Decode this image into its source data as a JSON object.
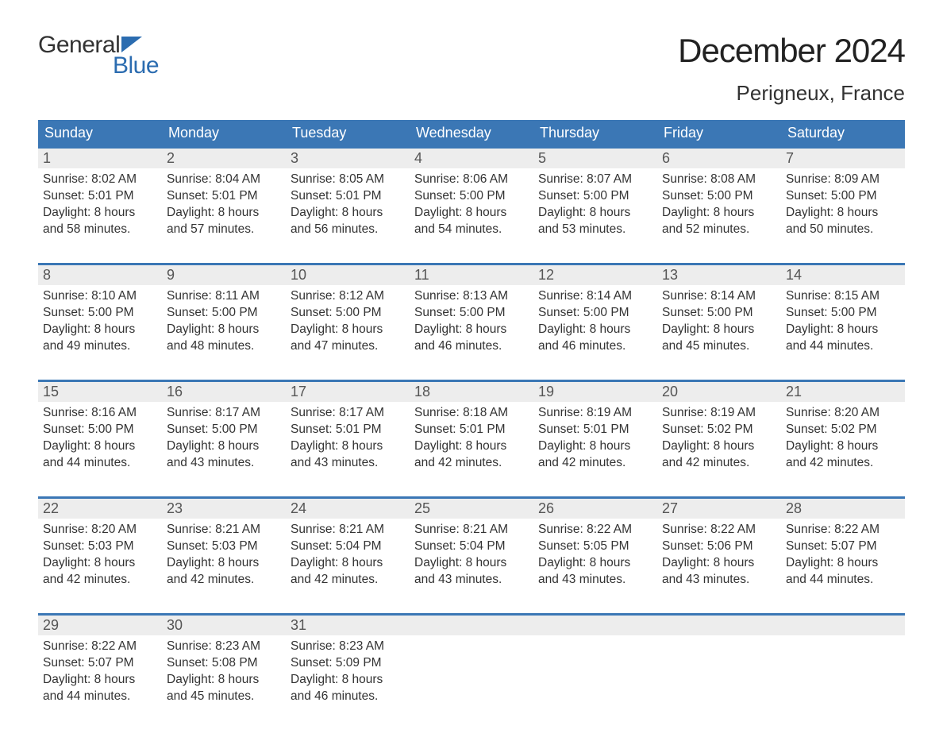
{
  "logo": {
    "word1": "General",
    "word2": "Blue",
    "triangle_color": "#2b6cb0"
  },
  "header": {
    "month_title": "December 2024",
    "location": "Perigneux, France"
  },
  "colors": {
    "header_bg": "#3b77b5",
    "header_text": "#ffffff",
    "daynum_bg": "#ededed",
    "text": "#333333",
    "week_border": "#3b77b5"
  },
  "weekdays": [
    "Sunday",
    "Monday",
    "Tuesday",
    "Wednesday",
    "Thursday",
    "Friday",
    "Saturday"
  ],
  "weeks": [
    [
      {
        "n": "1",
        "sunrise": "Sunrise: 8:02 AM",
        "sunset": "Sunset: 5:01 PM",
        "day1": "Daylight: 8 hours",
        "day2": "and 58 minutes."
      },
      {
        "n": "2",
        "sunrise": "Sunrise: 8:04 AM",
        "sunset": "Sunset: 5:01 PM",
        "day1": "Daylight: 8 hours",
        "day2": "and 57 minutes."
      },
      {
        "n": "3",
        "sunrise": "Sunrise: 8:05 AM",
        "sunset": "Sunset: 5:01 PM",
        "day1": "Daylight: 8 hours",
        "day2": "and 56 minutes."
      },
      {
        "n": "4",
        "sunrise": "Sunrise: 8:06 AM",
        "sunset": "Sunset: 5:00 PM",
        "day1": "Daylight: 8 hours",
        "day2": "and 54 minutes."
      },
      {
        "n": "5",
        "sunrise": "Sunrise: 8:07 AM",
        "sunset": "Sunset: 5:00 PM",
        "day1": "Daylight: 8 hours",
        "day2": "and 53 minutes."
      },
      {
        "n": "6",
        "sunrise": "Sunrise: 8:08 AM",
        "sunset": "Sunset: 5:00 PM",
        "day1": "Daylight: 8 hours",
        "day2": "and 52 minutes."
      },
      {
        "n": "7",
        "sunrise": "Sunrise: 8:09 AM",
        "sunset": "Sunset: 5:00 PM",
        "day1": "Daylight: 8 hours",
        "day2": "and 50 minutes."
      }
    ],
    [
      {
        "n": "8",
        "sunrise": "Sunrise: 8:10 AM",
        "sunset": "Sunset: 5:00 PM",
        "day1": "Daylight: 8 hours",
        "day2": "and 49 minutes."
      },
      {
        "n": "9",
        "sunrise": "Sunrise: 8:11 AM",
        "sunset": "Sunset: 5:00 PM",
        "day1": "Daylight: 8 hours",
        "day2": "and 48 minutes."
      },
      {
        "n": "10",
        "sunrise": "Sunrise: 8:12 AM",
        "sunset": "Sunset: 5:00 PM",
        "day1": "Daylight: 8 hours",
        "day2": "and 47 minutes."
      },
      {
        "n": "11",
        "sunrise": "Sunrise: 8:13 AM",
        "sunset": "Sunset: 5:00 PM",
        "day1": "Daylight: 8 hours",
        "day2": "and 46 minutes."
      },
      {
        "n": "12",
        "sunrise": "Sunrise: 8:14 AM",
        "sunset": "Sunset: 5:00 PM",
        "day1": "Daylight: 8 hours",
        "day2": "and 46 minutes."
      },
      {
        "n": "13",
        "sunrise": "Sunrise: 8:14 AM",
        "sunset": "Sunset: 5:00 PM",
        "day1": "Daylight: 8 hours",
        "day2": "and 45 minutes."
      },
      {
        "n": "14",
        "sunrise": "Sunrise: 8:15 AM",
        "sunset": "Sunset: 5:00 PM",
        "day1": "Daylight: 8 hours",
        "day2": "and 44 minutes."
      }
    ],
    [
      {
        "n": "15",
        "sunrise": "Sunrise: 8:16 AM",
        "sunset": "Sunset: 5:00 PM",
        "day1": "Daylight: 8 hours",
        "day2": "and 44 minutes."
      },
      {
        "n": "16",
        "sunrise": "Sunrise: 8:17 AM",
        "sunset": "Sunset: 5:00 PM",
        "day1": "Daylight: 8 hours",
        "day2": "and 43 minutes."
      },
      {
        "n": "17",
        "sunrise": "Sunrise: 8:17 AM",
        "sunset": "Sunset: 5:01 PM",
        "day1": "Daylight: 8 hours",
        "day2": "and 43 minutes."
      },
      {
        "n": "18",
        "sunrise": "Sunrise: 8:18 AM",
        "sunset": "Sunset: 5:01 PM",
        "day1": "Daylight: 8 hours",
        "day2": "and 42 minutes."
      },
      {
        "n": "19",
        "sunrise": "Sunrise: 8:19 AM",
        "sunset": "Sunset: 5:01 PM",
        "day1": "Daylight: 8 hours",
        "day2": "and 42 minutes."
      },
      {
        "n": "20",
        "sunrise": "Sunrise: 8:19 AM",
        "sunset": "Sunset: 5:02 PM",
        "day1": "Daylight: 8 hours",
        "day2": "and 42 minutes."
      },
      {
        "n": "21",
        "sunrise": "Sunrise: 8:20 AM",
        "sunset": "Sunset: 5:02 PM",
        "day1": "Daylight: 8 hours",
        "day2": "and 42 minutes."
      }
    ],
    [
      {
        "n": "22",
        "sunrise": "Sunrise: 8:20 AM",
        "sunset": "Sunset: 5:03 PM",
        "day1": "Daylight: 8 hours",
        "day2": "and 42 minutes."
      },
      {
        "n": "23",
        "sunrise": "Sunrise: 8:21 AM",
        "sunset": "Sunset: 5:03 PM",
        "day1": "Daylight: 8 hours",
        "day2": "and 42 minutes."
      },
      {
        "n": "24",
        "sunrise": "Sunrise: 8:21 AM",
        "sunset": "Sunset: 5:04 PM",
        "day1": "Daylight: 8 hours",
        "day2": "and 42 minutes."
      },
      {
        "n": "25",
        "sunrise": "Sunrise: 8:21 AM",
        "sunset": "Sunset: 5:04 PM",
        "day1": "Daylight: 8 hours",
        "day2": "and 43 minutes."
      },
      {
        "n": "26",
        "sunrise": "Sunrise: 8:22 AM",
        "sunset": "Sunset: 5:05 PM",
        "day1": "Daylight: 8 hours",
        "day2": "and 43 minutes."
      },
      {
        "n": "27",
        "sunrise": "Sunrise: 8:22 AM",
        "sunset": "Sunset: 5:06 PM",
        "day1": "Daylight: 8 hours",
        "day2": "and 43 minutes."
      },
      {
        "n": "28",
        "sunrise": "Sunrise: 8:22 AM",
        "sunset": "Sunset: 5:07 PM",
        "day1": "Daylight: 8 hours",
        "day2": "and 44 minutes."
      }
    ],
    [
      {
        "n": "29",
        "sunrise": "Sunrise: 8:22 AM",
        "sunset": "Sunset: 5:07 PM",
        "day1": "Daylight: 8 hours",
        "day2": "and 44 minutes."
      },
      {
        "n": "30",
        "sunrise": "Sunrise: 8:23 AM",
        "sunset": "Sunset: 5:08 PM",
        "day1": "Daylight: 8 hours",
        "day2": "and 45 minutes."
      },
      {
        "n": "31",
        "sunrise": "Sunrise: 8:23 AM",
        "sunset": "Sunset: 5:09 PM",
        "day1": "Daylight: 8 hours",
        "day2": "and 46 minutes."
      },
      {
        "n": "",
        "empty": true
      },
      {
        "n": "",
        "empty": true
      },
      {
        "n": "",
        "empty": true
      },
      {
        "n": "",
        "empty": true
      }
    ]
  ]
}
